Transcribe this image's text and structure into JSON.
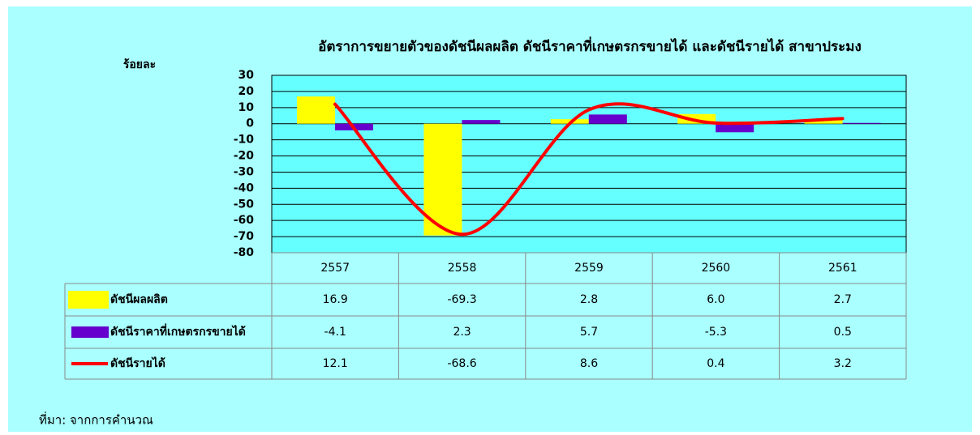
{
  "chart_data": {
    "type": "bar",
    "title": "อัตราการขยายตัวของดัชนีผลผลิต ดัชนีราคาที่เกษตรกรขายได้ และดัชนีรายได้ สาขาประมง",
    "y_label": "ร้อยละ",
    "source": "ที่มา: จากการคำนวณ",
    "categories": [
      "2557",
      "2558",
      "2559",
      "2560",
      "2561"
    ],
    "series": [
      {
        "name": "ดัชนีผลผลิต",
        "type": "bar",
        "color": "#ffff00",
        "values": [
          16.9,
          -69.3,
          2.8,
          6.0,
          2.7
        ],
        "value_labels": [
          "16.9",
          "-69.3",
          "2.8",
          "6.0",
          "2.7"
        ]
      },
      {
        "name": "ดัชนีราคาที่เกษตรกรขายได้",
        "type": "bar",
        "color": "#6600cc",
        "values": [
          -4.1,
          2.3,
          5.7,
          -5.3,
          0.5
        ],
        "value_labels": [
          "-4.1",
          "2.3",
          "5.7",
          "-5.3",
          "0.5"
        ]
      },
      {
        "name": "ดัชนีรายได้",
        "type": "line",
        "color": "#ff0000",
        "values": [
          12.1,
          -68.6,
          8.6,
          0.4,
          3.2
        ],
        "value_labels": [
          "12.1",
          "-68.6",
          "8.6",
          "0.4",
          "3.2"
        ]
      }
    ],
    "ylim": [
      -80,
      30
    ],
    "yticks": [
      30,
      20,
      10,
      0,
      -10,
      -20,
      -30,
      -40,
      -50,
      -60,
      -70,
      -80
    ],
    "grid": true
  }
}
